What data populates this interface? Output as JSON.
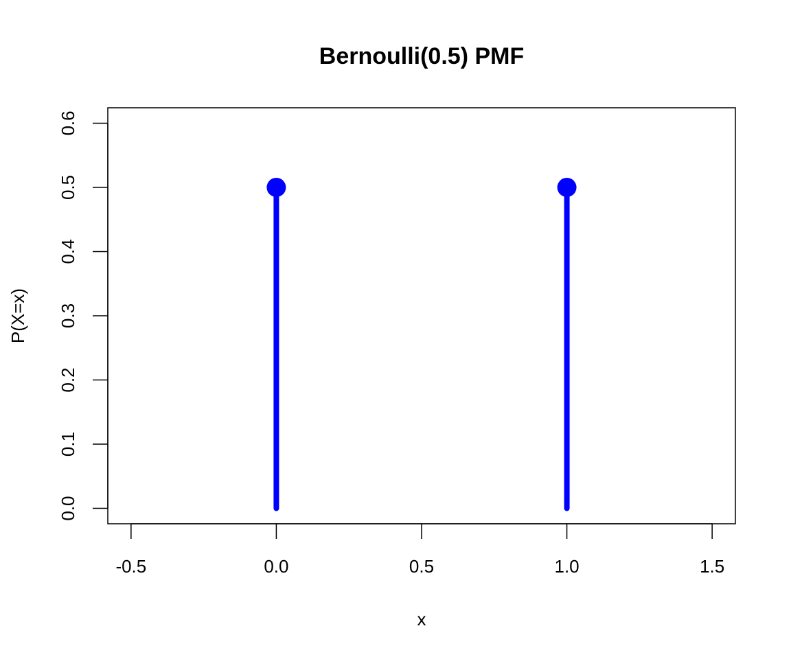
{
  "chart_data": {
    "type": "scatter",
    "style": "lollipop",
    "title": "Bernoulli(0.5) PMF",
    "xlabel": "x",
    "ylabel": "P(X=x)",
    "xlim": [
      -0.58,
      1.58
    ],
    "ylim": [
      -0.024,
      0.624
    ],
    "xticks": [
      -0.5,
      0.0,
      0.5,
      1.0,
      1.5
    ],
    "xtick_labels": [
      "-0.5",
      "0.0",
      "0.5",
      "1.0",
      "1.5"
    ],
    "yticks": [
      0.0,
      0.1,
      0.2,
      0.3,
      0.4,
      0.5,
      0.6
    ],
    "ytick_labels": [
      "0.0",
      "0.1",
      "0.2",
      "0.3",
      "0.4",
      "0.5",
      "0.6"
    ],
    "grid": false,
    "legend": "none",
    "color": "#0000ff",
    "series": [
      {
        "x": [
          0,
          1
        ],
        "y": [
          0.5,
          0.5
        ]
      }
    ]
  }
}
